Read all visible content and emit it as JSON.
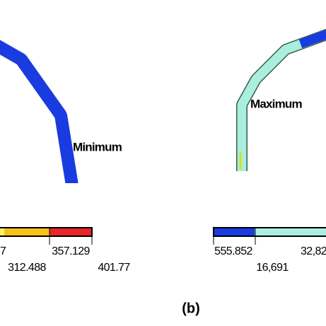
{
  "left_panel": {
    "annotation": "Minimum",
    "colorbar_labels": [
      "7",
      "357.129",
      "312.488",
      "401.77"
    ]
  },
  "right_panel": {
    "annotation": "Maximum",
    "colorbar_labels": [
      "555.852",
      "32,82",
      "16,691"
    ]
  },
  "caption": "(b)"
}
